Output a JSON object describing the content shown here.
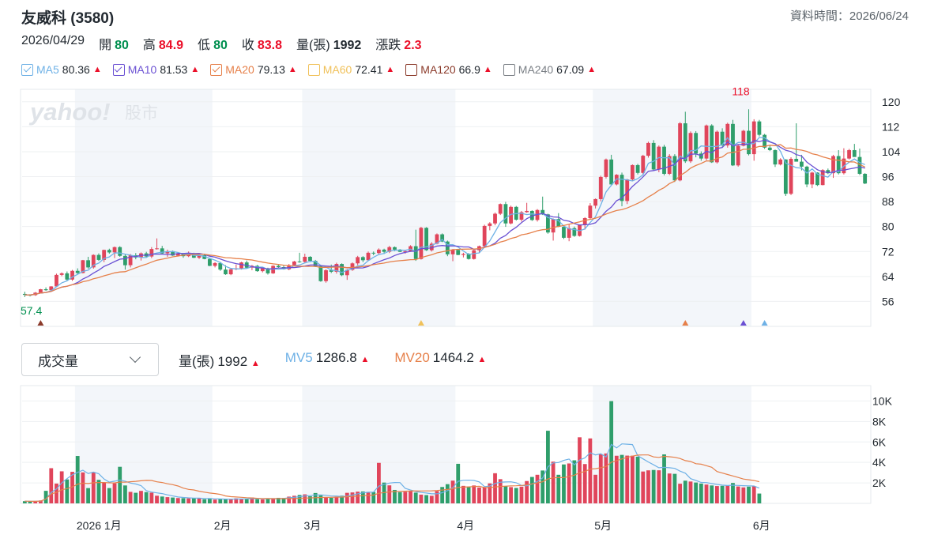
{
  "header": {
    "title": "友威科 (3580)",
    "data_time": "資料時間：2026/06/24"
  },
  "ohlc": {
    "date": "2026/04/29",
    "open_label": "開",
    "open": "80",
    "high_label": "高",
    "high": "84.9",
    "low_label": "低",
    "low": "80",
    "close_label": "收",
    "close": "83.8",
    "volume_label": "量(張)",
    "volume": "1992",
    "change_label": "漲跌",
    "change": "2.3"
  },
  "ma_legend": [
    {
      "name": "MA5",
      "value": "80.36",
      "color": "#6eb1e6",
      "checked": true
    },
    {
      "name": "MA10",
      "value": "81.53",
      "color": "#6a50d3",
      "checked": true
    },
    {
      "name": "MA20",
      "value": "79.13",
      "color": "#e6804a",
      "checked": true
    },
    {
      "name": "MA60",
      "value": "72.41",
      "color": "#f0c15a",
      "checked": false
    },
    {
      "name": "MA120",
      "value": "66.9",
      "color": "#8b3a2a",
      "checked": false
    },
    {
      "name": "MA240",
      "value": "67.09",
      "color": "#7a7f85",
      "checked": false
    }
  ],
  "trend_symbol": "▲",
  "volume_panel": {
    "selector_label": "成交量",
    "vol_label": "量(張)",
    "vol_value": "1992",
    "mv5_label": "MV5",
    "mv5_value": "1286.8",
    "mv20_label": "MV20",
    "mv20_value": "1464.2"
  },
  "watermark": {
    "brand": "yahoo!",
    "sub": "股市"
  },
  "colors": {
    "up": "#eb0f29",
    "down": "#008f4f",
    "up_bar": "#e0455b",
    "down_bar": "#2f9e6b",
    "flat_bar": "#6b6f73",
    "band": "#f3f6fa"
  },
  "chart_data": [
    {
      "type": "candlestick",
      "ylim": [
        48,
        124
      ],
      "y_ticks": [
        56,
        64,
        72,
        80,
        88,
        96,
        104,
        112,
        120
      ],
      "max_annotation": "118",
      "min_annotation": "57.4",
      "ohlc_series": [
        [
          58.4,
          59.1,
          57.4,
          58.1
        ],
        [
          58.1,
          58.3,
          57.6,
          58.0
        ],
        [
          58.0,
          59.0,
          57.8,
          58.8
        ],
        [
          58.8,
          60.0,
          58.6,
          59.9
        ],
        [
          59.9,
          60.5,
          59.4,
          59.6
        ],
        [
          59.6,
          60.9,
          59.2,
          60.8
        ],
        [
          60.8,
          64.9,
          60.8,
          64.5
        ],
        [
          64.5,
          65.3,
          64.1,
          65.0
        ],
        [
          65.0,
          65.6,
          62.6,
          63.0
        ],
        [
          63.0,
          66.1,
          62.6,
          65.8
        ],
        [
          65.8,
          66.6,
          64.7,
          65.1
        ],
        [
          65.1,
          69.3,
          65.0,
          69.2
        ],
        [
          69.2,
          70.3,
          66.5,
          66.9
        ],
        [
          66.9,
          71.1,
          66.5,
          70.9
        ],
        [
          70.9,
          71.4,
          69.0,
          69.3
        ],
        [
          69.3,
          72.6,
          68.6,
          72.5
        ],
        [
          72.5,
          72.9,
          71.3,
          71.7
        ],
        [
          71.7,
          73.6,
          69.9,
          73.4
        ],
        [
          73.4,
          73.7,
          70.3,
          70.6
        ],
        [
          70.6,
          71.1,
          66.2,
          67.6
        ],
        [
          67.6,
          71.2,
          66.9,
          70.8
        ],
        [
          70.8,
          71.5,
          69.5,
          70.1
        ],
        [
          70.1,
          71.7,
          69.1,
          71.4
        ],
        [
          71.4,
          71.9,
          70.2,
          70.4
        ],
        [
          70.4,
          73.4,
          69.9,
          72.8
        ],
        [
          72.8,
          76.2,
          72.6,
          73.0
        ],
        [
          73.0,
          73.8,
          71.2,
          71.4
        ],
        [
          71.4,
          72.6,
          70.3,
          72.1
        ],
        [
          72.1,
          72.3,
          70.6,
          70.7
        ],
        [
          70.7,
          71.8,
          70.4,
          71.2
        ],
        [
          71.2,
          71.5,
          70.0,
          70.5
        ],
        [
          70.5,
          72.0,
          70.2,
          71.3
        ],
        [
          71.3,
          71.6,
          69.9,
          70.0
        ],
        [
          70.0,
          71.1,
          69.6,
          70.8
        ],
        [
          70.8,
          71.3,
          69.5,
          69.6
        ],
        [
          69.6,
          69.9,
          67.3,
          67.4
        ],
        [
          67.4,
          68.6,
          66.9,
          68.3
        ],
        [
          68.3,
          68.7,
          65.8,
          66.2
        ],
        [
          66.2,
          67.6,
          64.5,
          64.7
        ],
        [
          64.7,
          66.6,
          64.4,
          66.3
        ],
        [
          66.3,
          67.8,
          66.0,
          66.6
        ],
        [
          66.6,
          68.7,
          66.2,
          68.5
        ],
        [
          68.5,
          69.1,
          66.7,
          66.8
        ],
        [
          66.8,
          67.7,
          66.0,
          67.4
        ],
        [
          67.4,
          67.7,
          65.5,
          65.7
        ],
        [
          65.7,
          66.8,
          65.3,
          66.6
        ],
        [
          66.6,
          66.8,
          64.6,
          65.0
        ],
        [
          65.0,
          67.6,
          64.8,
          67.4
        ],
        [
          67.4,
          68.0,
          66.8,
          67.0
        ],
        [
          67.0,
          67.5,
          66.2,
          66.3
        ],
        [
          66.3,
          68.0,
          66.0,
          67.6
        ],
        [
          67.6,
          69.0,
          67.4,
          68.8
        ],
        [
          68.8,
          71.6,
          68.4,
          68.7
        ],
        [
          68.7,
          71.3,
          68.4,
          70.3
        ],
        [
          70.3,
          70.5,
          68.6,
          69.0
        ],
        [
          69.0,
          69.3,
          67.0,
          67.3
        ],
        [
          67.3,
          67.6,
          62.3,
          62.5
        ],
        [
          62.5,
          66.3,
          62.0,
          66.0
        ],
        [
          66.0,
          67.8,
          65.1,
          65.5
        ],
        [
          65.5,
          68.4,
          64.9,
          68.0
        ],
        [
          68.0,
          68.2,
          64.1,
          64.4
        ],
        [
          64.4,
          66.4,
          62.9,
          66.1
        ],
        [
          66.1,
          68.5,
          65.8,
          68.2
        ],
        [
          68.2,
          70.6,
          67.6,
          70.2
        ],
        [
          70.2,
          70.5,
          68.6,
          69.2
        ],
        [
          69.2,
          72.0,
          68.9,
          71.6
        ],
        [
          71.6,
          72.0,
          70.8,
          71.5
        ],
        [
          71.5,
          73.0,
          71.0,
          72.6
        ],
        [
          72.6,
          72.9,
          71.2,
          71.9
        ],
        [
          71.9,
          73.8,
          71.5,
          73.4
        ],
        [
          73.4,
          73.6,
          72.1,
          72.6
        ],
        [
          72.6,
          72.8,
          71.8,
          71.9
        ],
        [
          71.9,
          72.4,
          71.3,
          72.1
        ],
        [
          72.1,
          74.0,
          71.9,
          73.7
        ],
        [
          73.7,
          79.0,
          69.0,
          69.6
        ],
        [
          69.6,
          79.9,
          69.4,
          79.6
        ],
        [
          79.6,
          79.8,
          72.2,
          72.4
        ],
        [
          72.4,
          75.0,
          72.0,
          74.5
        ],
        [
          74.5,
          77.8,
          74.3,
          77.5
        ],
        [
          77.5,
          77.8,
          75.0,
          75.2
        ],
        [
          75.2,
          75.5,
          70.5,
          71.1
        ],
        [
          71.1,
          72.8,
          68.9,
          72.5
        ],
        [
          72.5,
          72.8,
          70.8,
          70.9
        ],
        [
          70.9,
          71.6,
          70.1,
          71.2
        ],
        [
          71.2,
          71.5,
          69.4,
          69.6
        ],
        [
          69.6,
          72.6,
          69.4,
          72.4
        ],
        [
          72.4,
          73.9,
          71.5,
          73.7
        ],
        [
          73.7,
          80.6,
          73.4,
          80.2
        ],
        [
          80.2,
          81.4,
          78.8,
          81.0
        ],
        [
          81.0,
          84.5,
          80.4,
          84.1
        ],
        [
          84.1,
          87.4,
          83.7,
          87.2
        ],
        [
          87.2,
          87.9,
          79.9,
          81.0
        ],
        [
          81.0,
          86.7,
          80.7,
          86.3
        ],
        [
          86.3,
          86.6,
          81.9,
          82.2
        ],
        [
          82.2,
          85.0,
          81.6,
          84.6
        ],
        [
          84.6,
          87.6,
          84.4,
          85.0
        ],
        [
          85.0,
          85.2,
          81.8,
          82.1
        ],
        [
          82.1,
          85.6,
          81.6,
          85.3
        ],
        [
          85.3,
          89.6,
          83.7,
          83.9
        ],
        [
          83.9,
          84.1,
          77.7,
          78.1
        ],
        [
          78.1,
          82.6,
          75.5,
          82.4
        ],
        [
          82.4,
          84.3,
          79.8,
          79.9
        ],
        [
          79.9,
          80.3,
          76.0,
          76.4
        ],
        [
          76.4,
          80.7,
          75.3,
          79.5
        ],
        [
          79.5,
          80.0,
          76.7,
          77.0
        ],
        [
          77.0,
          80.7,
          76.8,
          80.5
        ],
        [
          80.5,
          83.0,
          79.0,
          82.7
        ],
        [
          82.7,
          87.5,
          82.3,
          86.7
        ],
        [
          86.7,
          89.0,
          85.8,
          88.8
        ],
        [
          88.8,
          96.3,
          88.1,
          95.9
        ],
        [
          95.9,
          101.8,
          95.4,
          101.5
        ],
        [
          101.5,
          103.0,
          93.0,
          93.5
        ],
        [
          93.5,
          96.8,
          93.2,
          96.6
        ],
        [
          96.6,
          97.3,
          86.5,
          88.2
        ],
        [
          88.2,
          95.3,
          87.2,
          95.1
        ],
        [
          95.1,
          99.9,
          94.5,
          99.7
        ],
        [
          99.7,
          100.1,
          96.7,
          97.2
        ],
        [
          97.2,
          103.0,
          96.6,
          102.7
        ],
        [
          102.7,
          107.2,
          102.1,
          106.8
        ],
        [
          106.8,
          107.7,
          97.9,
          98.3
        ],
        [
          98.3,
          106.0,
          97.4,
          105.6
        ],
        [
          105.6,
          106.2,
          96.4,
          96.9
        ],
        [
          96.9,
          103.2,
          96.5,
          102.6
        ],
        [
          102.6,
          103.2,
          94.3,
          94.8
        ],
        [
          94.8,
          113.5,
          94.5,
          113.1
        ],
        [
          113.1,
          116.8,
          100.4,
          100.9
        ],
        [
          100.9,
          110.5,
          100.4,
          110.0
        ],
        [
          110.0,
          110.6,
          102.2,
          103.4
        ],
        [
          103.4,
          104.1,
          101.1,
          101.8
        ],
        [
          101.8,
          112.7,
          101.3,
          112.4
        ],
        [
          112.4,
          112.8,
          100.4,
          100.6
        ],
        [
          100.6,
          110.8,
          100.2,
          110.4
        ],
        [
          110.4,
          111.5,
          105.6,
          106.0
        ],
        [
          106.0,
          113.3,
          105.3,
          112.9
        ],
        [
          112.9,
          114.2,
          99.4,
          99.6
        ],
        [
          99.6,
          106.2,
          99.2,
          105.9
        ],
        [
          105.9,
          111.0,
          105.7,
          110.7
        ],
        [
          110.7,
          117.6,
          102.8,
          103.2
        ],
        [
          103.2,
          114.4,
          101.1,
          113.7
        ],
        [
          113.7,
          114.2,
          108.9,
          109.4
        ],
        [
          109.4,
          109.7,
          104.9,
          105.3
        ],
        [
          105.3,
          106.1,
          104.2,
          104.5
        ],
        [
          104.5,
          104.7,
          99.1,
          99.9
        ],
        [
          99.9,
          101.9,
          99.6,
          101.5
        ],
        [
          101.5,
          101.6,
          89.8,
          90.5
        ],
        [
          90.5,
          102.2,
          90.1,
          101.7
        ],
        [
          101.7,
          113.1,
          101.3,
          100.8
        ],
        [
          100.8,
          103.0,
          98.0,
          99.2
        ],
        [
          99.2,
          99.5,
          92.6,
          93.5
        ],
        [
          93.5,
          97.6,
          92.3,
          97.3
        ],
        [
          97.3,
          97.4,
          93.0,
          93.3
        ],
        [
          93.3,
          98.4,
          93.2,
          98.1
        ],
        [
          98.1,
          98.6,
          96.8,
          97.1
        ],
        [
          97.1,
          103.0,
          95.6,
          102.6
        ],
        [
          102.6,
          104.5,
          96.7,
          97.1
        ],
        [
          97.1,
          105.1,
          96.7,
          101.8
        ],
        [
          101.8,
          104.9,
          101.5,
          104.5
        ],
        [
          104.5,
          106.5,
          103.8,
          102.3
        ],
        [
          102.3,
          105.0,
          96.5,
          96.9
        ],
        [
          96.9,
          97.1,
          93.6,
          93.8
        ]
      ]
    },
    {
      "type": "bar",
      "ylim": [
        0,
        11500
      ],
      "y_ticks": [
        2000,
        4000,
        6000,
        8000,
        10000
      ],
      "y_tick_labels": [
        "2K",
        "4K",
        "6K",
        "8K",
        "10K"
      ],
      "x_tick_labels": [
        "2026 1月",
        "2月",
        "3月",
        "4月",
        "5月",
        "6月"
      ],
      "values": [
        216,
        200,
        183,
        287,
        1226,
        3436,
        1935,
        3131,
        2342,
        3081,
        4628,
        3025,
        1493,
        3040,
        2296,
        2049,
        1495,
        1957,
        3573,
        1751,
        1123,
        1034,
        1219,
        1100,
        1049,
        746,
        670,
        609,
        571,
        522,
        509,
        489,
        495,
        513,
        405,
        443,
        371,
        418,
        442,
        387,
        495,
        406,
        461,
        576,
        409,
        385,
        455,
        504,
        543,
        527,
        659,
        744,
        822,
        880,
        692,
        1012,
        776,
        575,
        540,
        669,
        753,
        1031,
        1069,
        1142,
        1160,
        1049,
        1114,
        3956,
        2032,
        1761,
        1314,
        1099,
        1133,
        1203,
        1050,
        855,
        808,
        738,
        1203,
        1600,
        1876,
        2223,
        3866,
        1711,
        1640,
        1750,
        1546,
        1546,
        1951,
        2944,
        2366,
        1670,
        1589,
        1508,
        1635,
        2181,
        2581,
        2794,
        3212,
        7094,
        4077,
        2793,
        3803,
        3901,
        4206,
        6458,
        3842,
        6344,
        2793,
        4797,
        4877,
        9987,
        4651,
        4736,
        4665,
        4655,
        4559,
        3112,
        3227,
        3262,
        3232,
        4783,
        2919,
        2885,
        1919,
        2217,
        2135,
        2037,
        1936,
        1837,
        1752,
        1693,
        1712,
        1729,
        1992,
        1653,
        1560,
        1634,
        1660,
        960
      ]
    }
  ]
}
